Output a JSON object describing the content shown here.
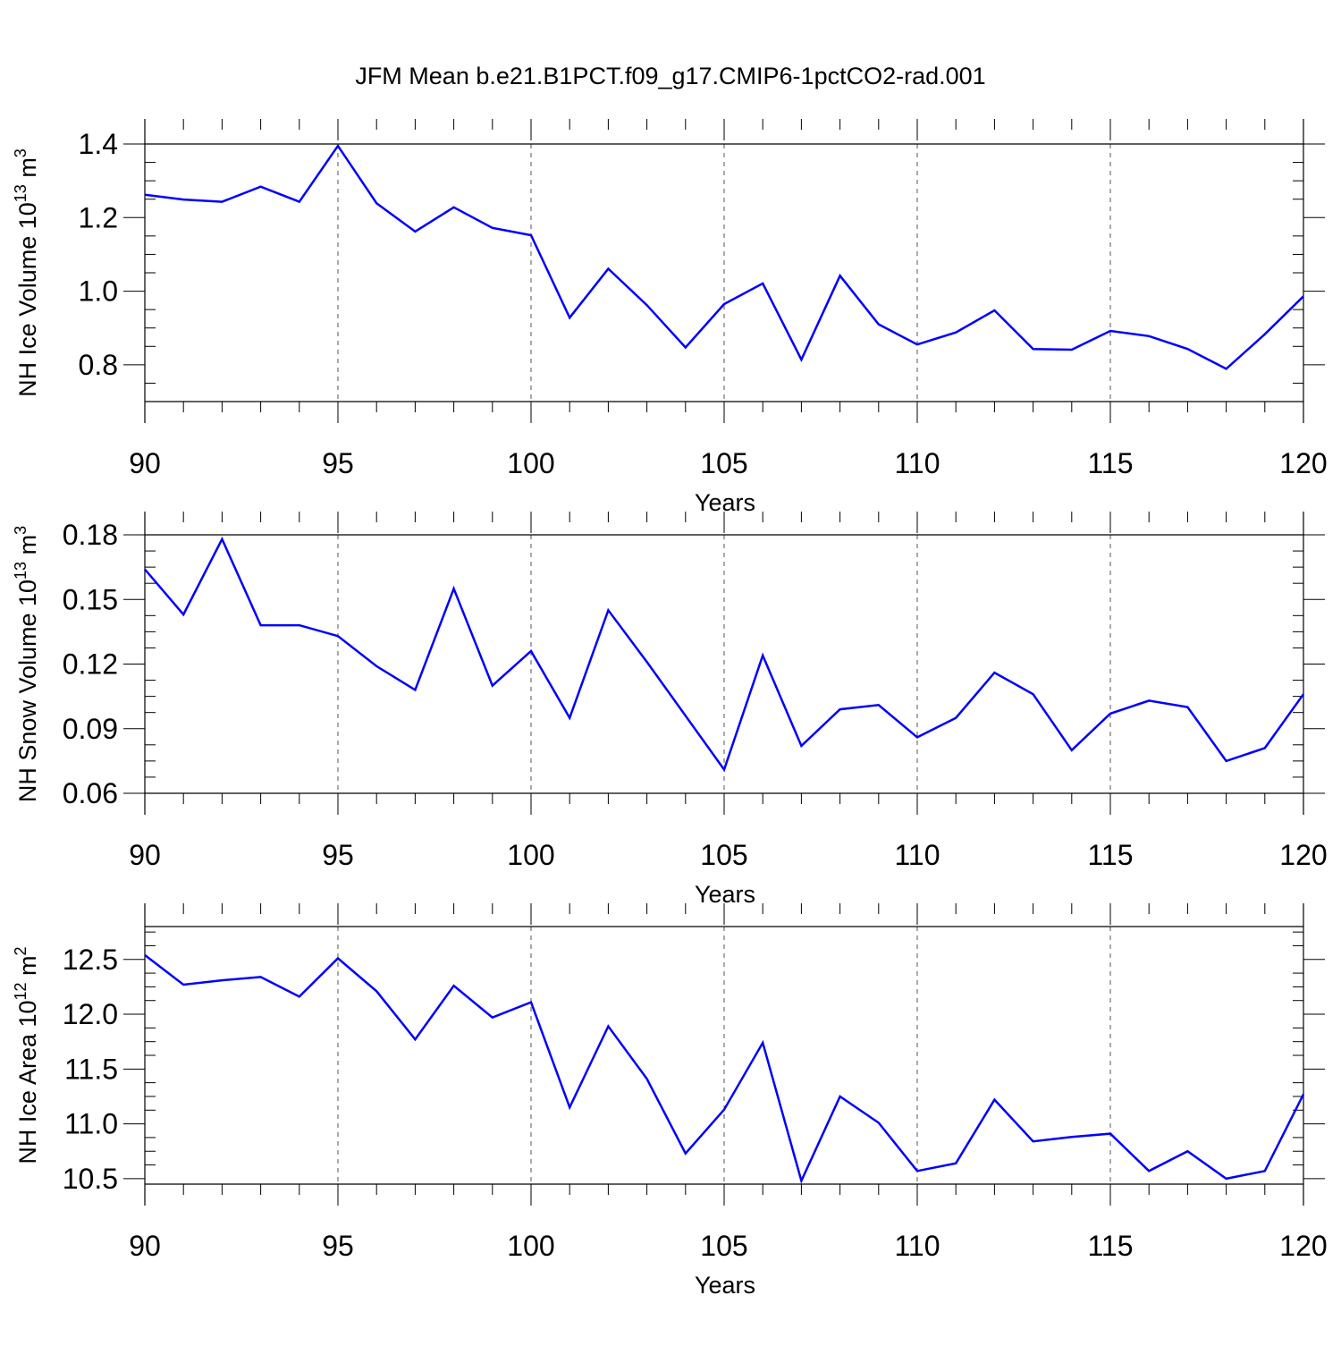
{
  "title": "JFM Mean b.e21.B1PCT.f09_g17.CMIP6-1pctCO2-rad.001",
  "colors": {
    "line": "#0000ff",
    "axis": "#000000",
    "grid": "#555555"
  },
  "chart_data": [
    {
      "type": "line",
      "ylabel": "NH Ice Volume 10",
      "ylabel_sup1": "13",
      "ylabel_mid": " m",
      "ylabel_sup2": "3",
      "xlabel": "Years",
      "xlim": [
        90,
        120
      ],
      "ylim": [
        0.7,
        1.4
      ],
      "xticks": [
        90,
        95,
        100,
        105,
        110,
        115,
        120
      ],
      "xtick_labels": [
        "90",
        "95",
        "100",
        "105",
        "110",
        "115",
        "120"
      ],
      "yticks": [
        0.8,
        1.0,
        1.2,
        1.4
      ],
      "ytick_labels": [
        "0.8",
        "1.0",
        "1.2",
        "1.4"
      ],
      "grid": "vertical dashed at major x ticks",
      "x": [
        90,
        91,
        92,
        93,
        94,
        95,
        96,
        97,
        98,
        99,
        100,
        101,
        102,
        103,
        104,
        105,
        106,
        107,
        108,
        109,
        110,
        111,
        112,
        113,
        114,
        115,
        116,
        117,
        118,
        119,
        120
      ],
      "values": [
        1.262,
        1.249,
        1.243,
        1.284,
        1.243,
        1.395,
        1.239,
        1.162,
        1.228,
        1.172,
        1.152,
        0.928,
        1.061,
        0.962,
        0.847,
        0.965,
        1.021,
        0.814,
        1.042,
        0.91,
        0.855,
        0.888,
        0.948,
        0.843,
        0.841,
        0.892,
        0.878,
        0.843,
        0.789,
        0.883,
        0.986
      ]
    },
    {
      "type": "line",
      "ylabel": "NH Snow Volume 10",
      "ylabel_sup1": "13",
      "ylabel_mid": " m",
      "ylabel_sup2": "3",
      "xlabel": "Years",
      "xlim": [
        90,
        120
      ],
      "ylim": [
        0.06,
        0.18
      ],
      "xticks": [
        90,
        95,
        100,
        105,
        110,
        115,
        120
      ],
      "xtick_labels": [
        "90",
        "95",
        "100",
        "105",
        "110",
        "115",
        "120"
      ],
      "yticks": [
        0.06,
        0.09,
        0.12,
        0.15,
        0.18
      ],
      "ytick_labels": [
        "0.06",
        "0.09",
        "0.12",
        "0.15",
        "0.18"
      ],
      "grid": "vertical dashed at major x ticks",
      "x": [
        90,
        91,
        92,
        93,
        94,
        95,
        96,
        97,
        98,
        99,
        100,
        101,
        102,
        103,
        104,
        105,
        106,
        107,
        108,
        109,
        110,
        111,
        112,
        113,
        114,
        115,
        116,
        117,
        118,
        119,
        120
      ],
      "values": [
        0.164,
        0.143,
        0.178,
        0.138,
        0.138,
        0.133,
        0.119,
        0.108,
        0.155,
        0.11,
        0.126,
        0.095,
        0.145,
        0.121,
        0.096,
        0.071,
        0.124,
        0.082,
        0.099,
        0.101,
        0.086,
        0.095,
        0.116,
        0.106,
        0.08,
        0.097,
        0.103,
        0.1,
        0.075,
        0.081,
        0.106
      ]
    },
    {
      "type": "line",
      "ylabel": "NH Ice Area 10",
      "ylabel_sup1": "12",
      "ylabel_mid": " m",
      "ylabel_sup2": "2",
      "xlabel": "Years",
      "xlim": [
        90,
        120
      ],
      "ylim": [
        10.45,
        12.8
      ],
      "xticks": [
        90,
        95,
        100,
        105,
        110,
        115,
        120
      ],
      "xtick_labels": [
        "90",
        "95",
        "100",
        "105",
        "110",
        "115",
        "120"
      ],
      "yticks": [
        10.5,
        11.0,
        11.5,
        12.0,
        12.5
      ],
      "ytick_labels": [
        "10.5",
        "11.0",
        "11.5",
        "12.0",
        "12.5"
      ],
      "grid": "vertical dashed at major x ticks",
      "x": [
        90,
        91,
        92,
        93,
        94,
        95,
        96,
        97,
        98,
        99,
        100,
        101,
        102,
        103,
        104,
        105,
        106,
        107,
        108,
        109,
        110,
        111,
        112,
        113,
        114,
        115,
        116,
        117,
        118,
        119,
        120
      ],
      "values": [
        12.54,
        12.27,
        12.31,
        12.34,
        12.16,
        12.51,
        12.21,
        11.77,
        12.26,
        11.97,
        12.11,
        11.15,
        11.89,
        11.41,
        10.73,
        11.13,
        11.74,
        10.48,
        11.25,
        11.01,
        10.57,
        10.64,
        11.22,
        10.84,
        10.88,
        10.91,
        10.57,
        10.75,
        10.5,
        10.57,
        11.27
      ]
    }
  ]
}
